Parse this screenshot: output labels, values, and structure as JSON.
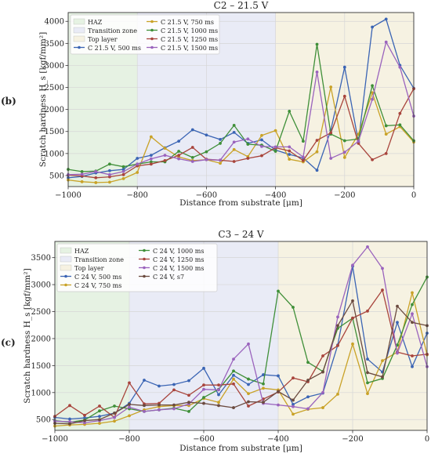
{
  "panels": [
    {
      "label": "(b)"
    },
    {
      "label": "(c)"
    }
  ],
  "chart_data": [
    {
      "type": "line",
      "title": "C2 – 21.5 V",
      "xlabel": "Distance from substrate [μm]",
      "ylabel": "Scratch hardness H_s [kgf/mm²]",
      "xlim": [
        -1000,
        0
      ],
      "ylim": [
        250,
        4200
      ],
      "xticks": [
        -1000,
        -800,
        -600,
        -400,
        -200,
        0
      ],
      "yticks": [
        500,
        1000,
        1500,
        2000,
        2500,
        3000,
        3500,
        4000
      ],
      "grid": true,
      "legend_position": "upper-left",
      "zones": [
        {
          "name": "HAZ",
          "from": -1000,
          "to": -800,
          "color": "#e6f2e3"
        },
        {
          "name": "Transition zone",
          "from": -800,
          "to": -400,
          "color": "#e9ebf6"
        },
        {
          "name": "Top layer",
          "from": -400,
          "to": 0,
          "color": "#f6f2e2"
        }
      ],
      "x": [
        -1000,
        -960,
        -920,
        -880,
        -840,
        -800,
        -760,
        -720,
        -680,
        -640,
        -600,
        -560,
        -520,
        -480,
        -440,
        -400,
        -360,
        -320,
        -280,
        -240,
        -200,
        -160,
        -120,
        -80,
        -40,
        0
      ],
      "series": [
        {
          "name": "C 21.5 V, 500 ms",
          "color": "#3a64b4",
          "values": [
            450,
            480,
            560,
            610,
            640,
            890,
            960,
            1130,
            1280,
            1540,
            1420,
            1320,
            1480,
            1230,
            1310,
            1080,
            980,
            900,
            620,
            1530,
            2960,
            1260,
            3870,
            4050,
            3000,
            2480
          ]
        },
        {
          "name": "C 21.5 V, 750 ms",
          "color": "#c9a227",
          "values": [
            400,
            360,
            340,
            350,
            430,
            570,
            1380,
            1120,
            920,
            840,
            860,
            780,
            1090,
            930,
            1410,
            1520,
            870,
            810,
            1040,
            2510,
            910,
            1440,
            2380,
            1440,
            1610,
            1260
          ]
        },
        {
          "name": "C 21.5 V, 1000 ms",
          "color": "#3f8f38",
          "values": [
            640,
            590,
            600,
            760,
            700,
            760,
            810,
            810,
            1050,
            910,
            1040,
            1230,
            1640,
            1210,
            1190,
            1050,
            1960,
            1280,
            3480,
            1440,
            1290,
            1330,
            2540,
            1630,
            1650,
            1290
          ]
        },
        {
          "name": "C 21.5 V, 1250 ms",
          "color": "#a8443c",
          "values": [
            510,
            490,
            450,
            470,
            520,
            720,
            760,
            840,
            960,
            1140,
            870,
            850,
            820,
            890,
            950,
            1130,
            1060,
            840,
            1300,
            1470,
            2300,
            1230,
            860,
            1000,
            1910,
            2470
          ]
        },
        {
          "name": "C 21.5 V, 1500 ms",
          "color": "#9a63bd",
          "values": [
            520,
            530,
            590,
            520,
            590,
            760,
            880,
            960,
            880,
            820,
            860,
            850,
            1260,
            1330,
            1160,
            1150,
            1150,
            920,
            2850,
            890,
            1030,
            1280,
            2230,
            3530,
            2960,
            1850
          ]
        }
      ]
    },
    {
      "type": "line",
      "title": "C3 – 24 V",
      "xlabel": "Distance from substrate [μm]",
      "ylabel": "Scratch hardness H_s [kgf/mm²]",
      "xlim": [
        -1000,
        0
      ],
      "ylim": [
        300,
        3800
      ],
      "xticks": [
        -1000,
        -800,
        -600,
        -400,
        -200,
        0
      ],
      "yticks": [
        500,
        1000,
        1500,
        2000,
        2500,
        3000,
        3500
      ],
      "grid": true,
      "legend_position": "upper-left",
      "zones": [
        {
          "name": "HAZ",
          "from": -1000,
          "to": -800,
          "color": "#e6f2e3"
        },
        {
          "name": "Transition zone",
          "from": -800,
          "to": -400,
          "color": "#e9ebf6"
        },
        {
          "name": "Top layer",
          "from": -400,
          "to": 0,
          "color": "#f6f2e2"
        }
      ],
      "x": [
        -1000,
        -960,
        -920,
        -880,
        -840,
        -800,
        -760,
        -720,
        -680,
        -640,
        -600,
        -560,
        -520,
        -480,
        -440,
        -400,
        -360,
        -320,
        -280,
        -240,
        -200,
        -160,
        -120,
        -80,
        -40,
        0
      ],
      "series": [
        {
          "name": "C 24 V, 500 ms",
          "color": "#3a64b4",
          "values": [
            540,
            510,
            530,
            560,
            620,
            800,
            1230,
            1120,
            1150,
            1220,
            1450,
            960,
            1320,
            1150,
            1330,
            1310,
            780,
            920,
            990,
            1880,
            3340,
            1620,
            1380,
            2300,
            1480,
            2100
          ]
        },
        {
          "name": "C 24 V, 750 ms",
          "color": "#c9a227",
          "values": [
            380,
            400,
            410,
            430,
            470,
            570,
            680,
            740,
            760,
            760,
            890,
            820,
            1250,
            980,
            1080,
            1050,
            600,
            690,
            720,
            970,
            1900,
            980,
            1590,
            1750,
            2850,
            1700
          ]
        },
        {
          "name": "C 24 V, 1000 ms",
          "color": "#3f8f38",
          "values": [
            480,
            450,
            490,
            660,
            750,
            700,
            650,
            680,
            710,
            650,
            910,
            1060,
            1400,
            1250,
            1160,
            2880,
            2580,
            1560,
            1390,
            2190,
            2380,
            1180,
            1260,
            1880,
            2630,
            3140
          ]
        },
        {
          "name": "C 24 V, 1250 ms",
          "color": "#a8443c",
          "values": [
            560,
            760,
            580,
            750,
            540,
            1180,
            790,
            800,
            1050,
            950,
            1140,
            1140,
            1160,
            750,
            880,
            1010,
            1270,
            1200,
            1680,
            1870,
            2380,
            2510,
            2900,
            1750,
            1680,
            1710
          ]
        },
        {
          "name": "C 24 V, 1500 ms",
          "color": "#9a63bd",
          "values": [
            470,
            460,
            440,
            480,
            540,
            730,
            650,
            680,
            700,
            790,
            1060,
            1050,
            1620,
            1900,
            800,
            770,
            740,
            700,
            1000,
            2400,
            3360,
            3700,
            3300,
            1730,
            2460,
            1480
          ]
        },
        {
          "name": "C 24 V, s7",
          "color": "#6b4a3f",
          "values": [
            430,
            420,
            480,
            500,
            620,
            780,
            760,
            770,
            770,
            820,
            800,
            760,
            720,
            830,
            820,
            1020,
            860,
            1230,
            1380,
            2240,
            2700,
            1370,
            1290,
            2600,
            2300,
            2240
          ]
        }
      ]
    }
  ]
}
